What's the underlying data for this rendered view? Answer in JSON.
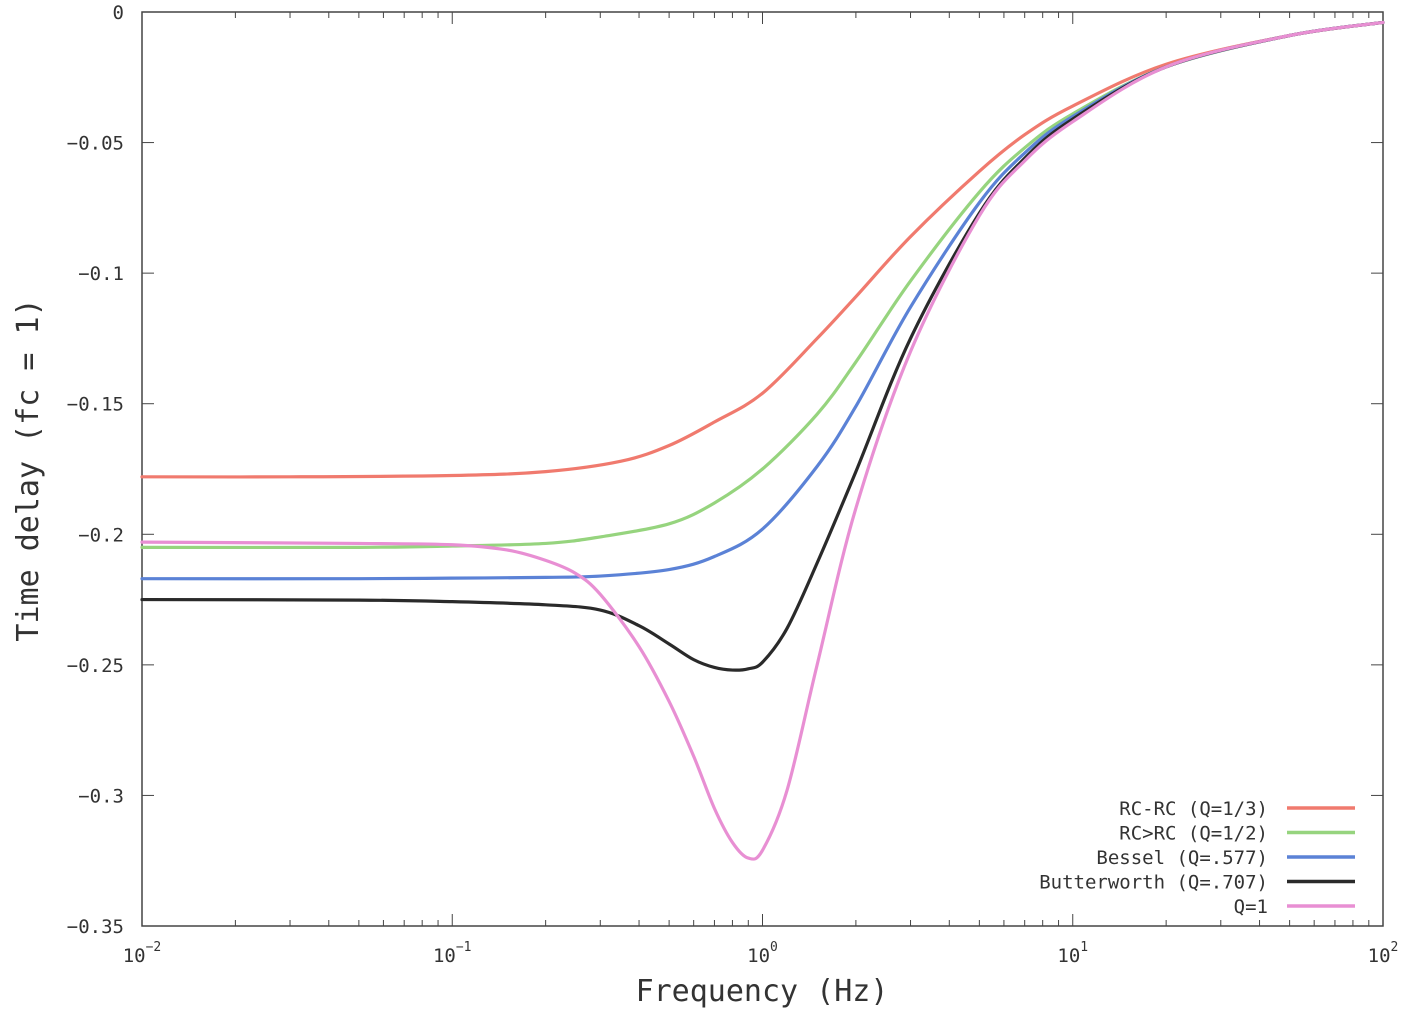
{
  "chart_data": {
    "type": "line",
    "title": "",
    "xlabel": "Frequency (Hz)",
    "ylabel": "Time delay (fc = 1)",
    "x_scale": "log",
    "xlim": [
      0.01,
      100
    ],
    "ylim": [
      -0.35,
      0
    ],
    "x_ticks": [
      {
        "value": 0.01,
        "base": "10",
        "exp": "−2"
      },
      {
        "value": 0.1,
        "base": "10",
        "exp": "−1"
      },
      {
        "value": 1,
        "base": "10",
        "exp": "0"
      },
      {
        "value": 10,
        "base": "10",
        "exp": "1"
      },
      {
        "value": 100,
        "base": "10",
        "exp": "2"
      }
    ],
    "y_ticks": [
      {
        "value": 0,
        "label": "0"
      },
      {
        "value": -0.05,
        "label": "−0.05"
      },
      {
        "value": -0.1,
        "label": "−0.1"
      },
      {
        "value": -0.15,
        "label": "−0.15"
      },
      {
        "value": -0.2,
        "label": "−0.2"
      },
      {
        "value": -0.25,
        "label": "−0.25"
      },
      {
        "value": -0.3,
        "label": "−0.3"
      },
      {
        "value": -0.35,
        "label": "−0.35"
      }
    ],
    "grid": false,
    "legend_position": "bottom-right",
    "series": [
      {
        "name": "RC-RC (Q=1/3)",
        "color": "#f07a6e",
        "x": [
          0.01,
          0.03,
          0.1,
          0.2,
          0.35,
          0.5,
          0.7,
          1,
          1.5,
          2,
          3,
          5,
          7,
          10,
          20,
          50,
          100
        ],
        "y": [
          -0.178,
          -0.178,
          -0.1775,
          -0.176,
          -0.172,
          -0.166,
          -0.157,
          -0.146,
          -0.125,
          -0.109,
          -0.086,
          -0.061,
          -0.047,
          -0.036,
          -0.02,
          -0.009,
          -0.004
        ]
      },
      {
        "name": "RC>RC (Q=1/2)",
        "color": "#96d47e",
        "x": [
          0.01,
          0.05,
          0.1,
          0.2,
          0.3,
          0.5,
          0.7,
          1,
          1.5,
          2,
          3,
          5,
          7,
          10,
          20,
          50,
          100
        ],
        "y": [
          -0.205,
          -0.205,
          -0.2045,
          -0.2035,
          -0.201,
          -0.196,
          -0.188,
          -0.175,
          -0.154,
          -0.134,
          -0.103,
          -0.069,
          -0.052,
          -0.039,
          -0.021,
          -0.009,
          -0.004
        ]
      },
      {
        "name": "Bessel (Q=.577)",
        "color": "#5b82d6",
        "x": [
          0.01,
          0.05,
          0.1,
          0.2,
          0.3,
          0.5,
          0.7,
          1,
          1.5,
          2,
          3,
          5,
          7,
          10,
          20,
          50,
          100
        ],
        "y": [
          -0.217,
          -0.217,
          -0.2168,
          -0.2165,
          -0.216,
          -0.2135,
          -0.2085,
          -0.198,
          -0.174,
          -0.151,
          -0.113,
          -0.073,
          -0.054,
          -0.04,
          -0.021,
          -0.009,
          -0.004
        ]
      },
      {
        "name": "Butterworth (Q=.707)",
        "color": "#2a2a2a",
        "x": [
          0.01,
          0.05,
          0.1,
          0.2,
          0.3,
          0.4,
          0.5,
          0.6,
          0.7,
          0.8,
          0.9,
          1,
          1.2,
          1.5,
          2,
          3,
          5,
          7,
          10,
          20,
          50,
          100
        ],
        "y": [
          -0.225,
          -0.2252,
          -0.2258,
          -0.227,
          -0.229,
          -0.235,
          -0.242,
          -0.248,
          -0.251,
          -0.252,
          -0.2515,
          -0.249,
          -0.236,
          -0.211,
          -0.176,
          -0.125,
          -0.077,
          -0.056,
          -0.041,
          -0.021,
          -0.009,
          -0.004
        ]
      },
      {
        "name": "Q=1",
        "color": "#e88fd3",
        "x": [
          0.01,
          0.05,
          0.1,
          0.15,
          0.2,
          0.25,
          0.3,
          0.4,
          0.5,
          0.6,
          0.7,
          0.8,
          0.9,
          1,
          1.2,
          1.5,
          2,
          3,
          5,
          7,
          10,
          20,
          50,
          100
        ],
        "y": [
          -0.203,
          -0.2035,
          -0.204,
          -0.206,
          -0.21,
          -0.215,
          -0.223,
          -0.243,
          -0.264,
          -0.285,
          -0.305,
          -0.318,
          -0.324,
          -0.321,
          -0.298,
          -0.25,
          -0.19,
          -0.13,
          -0.078,
          -0.057,
          -0.042,
          -0.021,
          -0.009,
          -0.004
        ]
      }
    ]
  }
}
